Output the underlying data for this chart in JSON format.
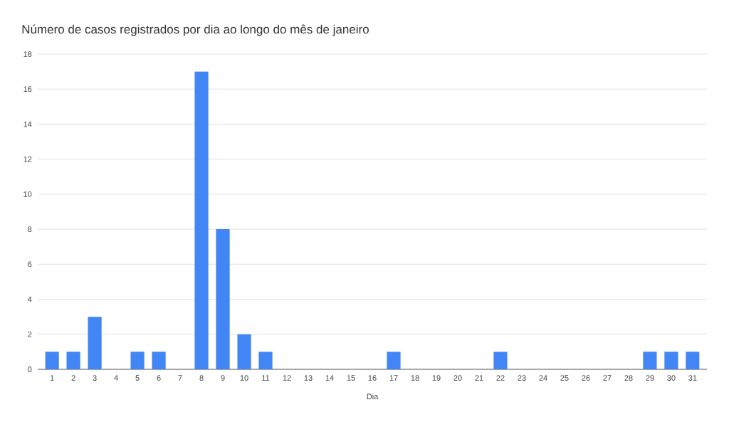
{
  "chart_data": {
    "type": "bar",
    "title": "Número de casos registrados por dia ao longo do mês de janeiro",
    "xlabel": "Dia",
    "categories": [
      "1",
      "2",
      "3",
      "4",
      "5",
      "6",
      "7",
      "8",
      "9",
      "10",
      "11",
      "12",
      "13",
      "14",
      "15",
      "16",
      "17",
      "18",
      "19",
      "20",
      "21",
      "22",
      "23",
      "24",
      "25",
      "26",
      "27",
      "28",
      "29",
      "30",
      "31"
    ],
    "values": [
      1,
      1,
      3,
      0,
      1,
      1,
      0,
      17,
      8,
      2,
      1,
      0,
      0,
      0,
      0,
      0,
      1,
      0,
      0,
      0,
      0,
      1,
      0,
      0,
      0,
      0,
      0,
      0,
      1,
      1,
      1
    ],
    "color": "#4285f4",
    "ylim": [
      0,
      18
    ],
    "yticks": [
      0,
      2,
      4,
      6,
      8,
      10,
      12,
      14,
      16,
      18
    ],
    "grid": "y"
  }
}
